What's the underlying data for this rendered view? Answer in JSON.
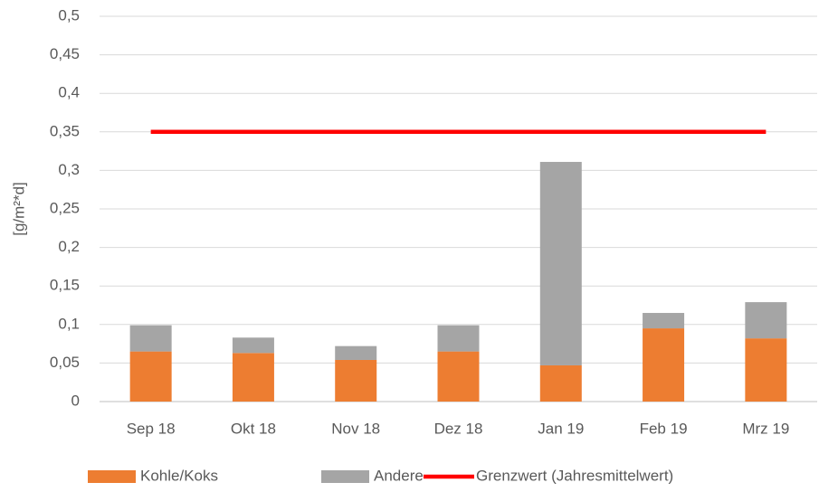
{
  "chart_data": {
    "type": "bar",
    "stacked": true,
    "y_label": "[g/m²*d]",
    "categories": [
      "Sep 18",
      "Okt 18",
      "Nov 18",
      "Dez 18",
      "Jan 19",
      "Feb 19",
      "Mrz 19"
    ],
    "series": [
      {
        "name": "Kohle/Koks",
        "color": "#ed7d31",
        "values": [
          0.065,
          0.063,
          0.054,
          0.065,
          0.047,
          0.095,
          0.082
        ]
      },
      {
        "name": "Andere",
        "color": "#a5a5a5",
        "values": [
          0.034,
          0.02,
          0.018,
          0.034,
          0.264,
          0.02,
          0.047
        ]
      },
      {
        "name": "Grenzwert (Jahresmittelwert)",
        "type": "line",
        "color": "#ff0000",
        "values": [
          0.35,
          0.35,
          0.35,
          0.35,
          0.35,
          0.35,
          0.35
        ]
      }
    ],
    "ylim": [
      0,
      0.5
    ],
    "yticks": [
      0,
      {
        "value": 0.05,
        "label": "0,05"
      },
      {
        "value": 0.1,
        "label": "0,1"
      },
      {
        "value": 0.15,
        "label": "0,15"
      },
      {
        "value": 0.2,
        "label": "0,2"
      },
      {
        "value": 0.25,
        "label": "0,25"
      },
      {
        "value": 0.3,
        "label": "0,3"
      },
      {
        "value": 0.35,
        "label": "0,35"
      },
      {
        "value": 0.4,
        "label": "0,4"
      },
      {
        "value": 0.45,
        "label": "0,45"
      },
      {
        "value": 0.5,
        "label": "0,5"
      }
    ],
    "grid": true,
    "legend": "bottom"
  }
}
